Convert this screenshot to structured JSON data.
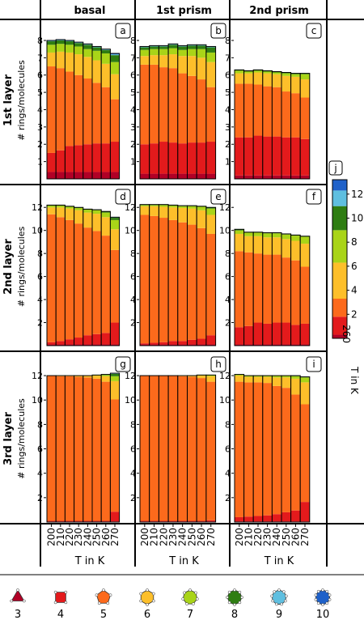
{
  "chart_data": {
    "type": "bar",
    "stacked": true,
    "x_values": [
      200,
      210,
      220,
      230,
      240,
      250,
      260,
      270
    ],
    "x_axis_label": "T in K",
    "y_axis_label": "# rings/molecules",
    "columns": [
      "basal",
      "1st prism",
      "2nd prism"
    ],
    "rows": [
      "1st layer",
      "2nd layer",
      "3rd layer"
    ],
    "series_names": [
      "3",
      "4",
      "5",
      "6",
      "7",
      "8",
      "9",
      "10"
    ],
    "series_colors": [
      "#b10026",
      "#e31a1c",
      "#fc6a1c",
      "#fdbf2a",
      "#a9d418",
      "#2e7d12",
      "#5fbfe0",
      "#1f61c9"
    ],
    "colorbar": {
      "label": "T in K",
      "value": "260",
      "ticks": [
        2,
        4,
        6,
        8,
        10,
        12
      ],
      "range": [
        0,
        13.2
      ]
    },
    "panels": [
      {
        "letter": "a",
        "row": 0,
        "col": 0,
        "ylim": [
          0,
          8.7
        ],
        "yticks": [
          1,
          2,
          3,
          4,
          5,
          6,
          7,
          8
        ],
        "stacks": [
          [
            0.4,
            1.1,
            5.0,
            0.8,
            0.45,
            0.2,
            0.05
          ],
          [
            0.4,
            1.25,
            4.75,
            0.95,
            0.45,
            0.2,
            0.05
          ],
          [
            0.4,
            1.5,
            4.3,
            1.1,
            0.45,
            0.2,
            0.05
          ],
          [
            0.4,
            1.55,
            4.05,
            1.2,
            0.45,
            0.2,
            0.05
          ],
          [
            0.4,
            1.6,
            3.8,
            1.25,
            0.45,
            0.25,
            0.05
          ],
          [
            0.4,
            1.65,
            3.5,
            1.3,
            0.55,
            0.2,
            0.05
          ],
          [
            0.4,
            1.65,
            3.25,
            1.35,
            0.6,
            0.2,
            0.05
          ],
          [
            0.4,
            1.75,
            2.45,
            1.45,
            0.7,
            0.4,
            0.05,
            0.05
          ]
        ]
      },
      {
        "letter": "b",
        "row": 0,
        "col": 1,
        "ylim": [
          0,
          8.7
        ],
        "yticks": [
          1,
          2,
          3,
          4,
          5,
          6,
          7,
          8
        ],
        "stacks": [
          [
            0.3,
            1.7,
            4.6,
            0.5,
            0.35,
            0.15,
            0.05
          ],
          [
            0.3,
            1.75,
            4.55,
            0.55,
            0.35,
            0.15,
            0.05
          ],
          [
            0.3,
            1.85,
            4.3,
            0.7,
            0.35,
            0.15,
            0.05
          ],
          [
            0.3,
            1.8,
            4.3,
            0.8,
            0.35,
            0.2,
            0.05
          ],
          [
            0.3,
            1.75,
            4.05,
            1.0,
            0.35,
            0.2,
            0.05
          ],
          [
            0.3,
            1.8,
            3.85,
            1.15,
            0.4,
            0.2,
            0.05
          ],
          [
            0.3,
            1.8,
            3.65,
            1.25,
            0.5,
            0.2,
            0.05
          ],
          [
            0.3,
            1.85,
            3.15,
            1.45,
            0.55,
            0.3,
            0.05
          ]
        ]
      },
      {
        "letter": "c",
        "row": 0,
        "col": 2,
        "ylim": [
          0,
          8.7
        ],
        "yticks": [
          1,
          2,
          3,
          4,
          5,
          6,
          7,
          8
        ],
        "stacks": [
          [
            0.2,
            2.2,
            3.1,
            0.6,
            0.15,
            0.05
          ],
          [
            0.2,
            2.2,
            3.1,
            0.6,
            0.1,
            0.05
          ],
          [
            0.2,
            2.3,
            2.95,
            0.7,
            0.1,
            0.05
          ],
          [
            0.2,
            2.25,
            2.9,
            0.75,
            0.1,
            0.05
          ],
          [
            0.2,
            2.25,
            2.85,
            0.75,
            0.1,
            0.05
          ],
          [
            0.2,
            2.2,
            2.65,
            0.9,
            0.15,
            0.05
          ],
          [
            0.2,
            2.2,
            2.55,
            0.95,
            0.15,
            0.05
          ],
          [
            0.2,
            2.1,
            2.4,
            1.05,
            0.3,
            0.05
          ]
        ]
      },
      {
        "letter": "d",
        "row": 1,
        "col": 0,
        "ylim": [
          0,
          13.0
        ],
        "yticks": [
          2,
          4,
          6,
          8,
          10,
          12
        ],
        "stacks": [
          [
            0.1,
            0.2,
            11.1,
            0.6,
            0.15,
            0.05
          ],
          [
            0.1,
            0.3,
            10.75,
            0.85,
            0.15,
            0.05
          ],
          [
            0.1,
            0.45,
            10.35,
            1.0,
            0.15,
            0.05
          ],
          [
            0.1,
            0.6,
            9.9,
            1.15,
            0.2,
            0.05
          ],
          [
            0.1,
            0.8,
            9.35,
            1.3,
            0.25,
            0.05
          ],
          [
            0.1,
            0.9,
            8.95,
            1.5,
            0.3,
            0.05
          ],
          [
            0.1,
            1.0,
            8.45,
            1.6,
            0.4,
            0.1
          ],
          [
            0.1,
            1.9,
            6.3,
            1.8,
            0.8,
            0.2,
            0.05
          ]
        ]
      },
      {
        "letter": "e",
        "row": 1,
        "col": 1,
        "ylim": [
          0,
          13.0
        ],
        "yticks": [
          2,
          4,
          6,
          8,
          10,
          12
        ],
        "stacks": [
          [
            0.1,
            0.1,
            11.15,
            0.75,
            0.1,
            0.05
          ],
          [
            0.1,
            0.15,
            11.0,
            0.85,
            0.1,
            0.05
          ],
          [
            0.1,
            0.2,
            10.8,
            0.95,
            0.15,
            0.05
          ],
          [
            0.1,
            0.3,
            10.5,
            1.1,
            0.15,
            0.05
          ],
          [
            0.1,
            0.3,
            10.3,
            1.25,
            0.15,
            0.05
          ],
          [
            0.1,
            0.4,
            10.0,
            1.4,
            0.2,
            0.05
          ],
          [
            0.1,
            0.5,
            9.6,
            1.55,
            0.3,
            0.05
          ],
          [
            0.1,
            0.8,
            8.8,
            1.65,
            0.55,
            0.1
          ]
        ]
      },
      {
        "letter": "f",
        "row": 1,
        "col": 2,
        "ylim": [
          0,
          13.0
        ],
        "yticks": [
          2,
          4,
          6,
          8,
          10,
          12
        ],
        "stacks": [
          [
            0.1,
            1.5,
            6.6,
            1.5,
            0.3,
            0.1
          ],
          [
            0.1,
            1.6,
            6.4,
            1.4,
            0.3,
            0.05
          ],
          [
            0.1,
            1.9,
            6.0,
            1.5,
            0.3,
            0.05
          ],
          [
            0.1,
            1.8,
            6.0,
            1.5,
            0.35,
            0.05
          ],
          [
            0.1,
            1.9,
            5.9,
            1.5,
            0.35,
            0.05
          ],
          [
            0.1,
            1.9,
            5.65,
            1.6,
            0.4,
            0.05
          ],
          [
            0.1,
            1.7,
            5.6,
            1.7,
            0.45,
            0.05
          ],
          [
            0.1,
            1.8,
            4.95,
            2.0,
            0.6,
            0.05
          ]
        ]
      },
      {
        "letter": "g",
        "row": 2,
        "col": 0,
        "ylim": [
          0,
          13.0
        ],
        "yticks": [
          2,
          4,
          6,
          8,
          10,
          12
        ],
        "stacks": [
          [
            0.05,
            0.05,
            11.9
          ],
          [
            0.05,
            0.05,
            11.85,
            0.05
          ],
          [
            0.05,
            0.05,
            11.85,
            0.05
          ],
          [
            0.05,
            0.05,
            11.8,
            0.1
          ],
          [
            0.05,
            0.05,
            11.75,
            0.15
          ],
          [
            0.05,
            0.05,
            11.65,
            0.25,
            0.05
          ],
          [
            0.05,
            0.05,
            11.4,
            0.45,
            0.1,
            0.05
          ],
          [
            0.05,
            0.8,
            9.2,
            1.5,
            0.4,
            0.2,
            0.05
          ]
        ]
      },
      {
        "letter": "h",
        "row": 2,
        "col": 1,
        "ylim": [
          0,
          13.0
        ],
        "yticks": [
          2,
          4,
          6,
          8,
          10,
          12
        ],
        "stacks": [
          [
            0.05,
            0.05,
            11.9
          ],
          [
            0.05,
            0.05,
            11.9
          ],
          [
            0.05,
            0.05,
            11.9
          ],
          [
            0.05,
            0.05,
            11.9
          ],
          [
            0.05,
            0.05,
            11.85,
            0.05
          ],
          [
            0.05,
            0.05,
            11.8,
            0.1
          ],
          [
            0.05,
            0.05,
            11.7,
            0.2,
            0.05
          ],
          [
            0.05,
            0.1,
            11.35,
            0.45,
            0.1
          ]
        ]
      },
      {
        "letter": "i",
        "row": 2,
        "col": 2,
        "ylim": [
          0,
          13.0
        ],
        "yticks": [
          2,
          4,
          6,
          8,
          10,
          12
        ],
        "stacks": [
          [
            0.05,
            0.35,
            11.1,
            0.5,
            0.1
          ],
          [
            0.05,
            0.4,
            11.0,
            0.45,
            0.1
          ],
          [
            0.05,
            0.45,
            10.95,
            0.45,
            0.1
          ],
          [
            0.05,
            0.5,
            10.85,
            0.5,
            0.1
          ],
          [
            0.05,
            0.6,
            10.5,
            0.7,
            0.15
          ],
          [
            0.05,
            0.75,
            10.2,
            0.85,
            0.15
          ],
          [
            0.05,
            0.9,
            9.5,
            1.3,
            0.2,
            0.05
          ],
          [
            0.05,
            1.6,
            8.0,
            1.8,
            0.4,
            0.05
          ]
        ]
      }
    ]
  }
}
